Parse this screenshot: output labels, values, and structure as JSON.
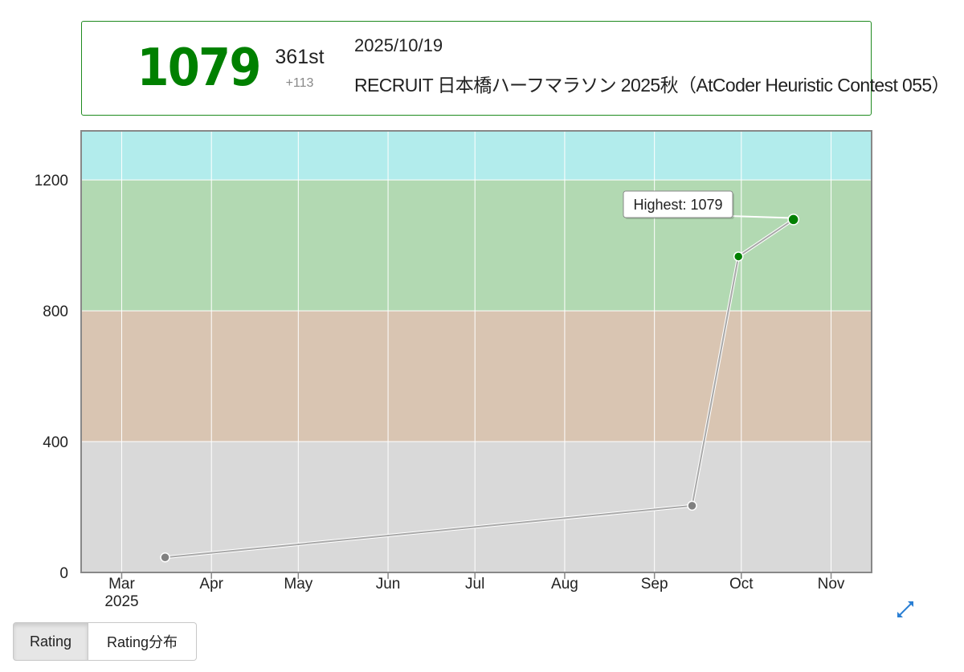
{
  "status": {
    "rating": "1079",
    "rank": "361st",
    "diff": "+113",
    "date": "2025/10/19",
    "contest": "RECRUIT 日本橋ハーフマラソン 2025秋（AtCoder Heuristic Contest 055）"
  },
  "tabs": [
    {
      "label": "Rating",
      "active": true
    },
    {
      "label": "Rating分布",
      "active": false
    }
  ],
  "chart_data": {
    "type": "line",
    "title": "",
    "xlabel": "",
    "ylabel": "",
    "ylim": [
      0,
      1350
    ],
    "y_ticks": [
      0,
      400,
      800,
      1200
    ],
    "x_range": [
      "2025-02-15",
      "2025-11-15"
    ],
    "x_ticks": [
      {
        "date": "2025-03-01",
        "label": "Mar",
        "sublabel": "2025"
      },
      {
        "date": "2025-04-01",
        "label": "Apr",
        "sublabel": ""
      },
      {
        "date": "2025-05-01",
        "label": "May",
        "sublabel": ""
      },
      {
        "date": "2025-06-01",
        "label": "Jun",
        "sublabel": ""
      },
      {
        "date": "2025-07-01",
        "label": "Jul",
        "sublabel": ""
      },
      {
        "date": "2025-08-01",
        "label": "Aug",
        "sublabel": ""
      },
      {
        "date": "2025-09-01",
        "label": "Sep",
        "sublabel": ""
      },
      {
        "date": "2025-10-01",
        "label": "Oct",
        "sublabel": ""
      },
      {
        "date": "2025-11-01",
        "label": "Nov",
        "sublabel": ""
      }
    ],
    "bands": [
      {
        "from": 0,
        "to": 400,
        "color": "#d9d9d9"
      },
      {
        "from": 400,
        "to": 800,
        "color": "#d9c5b2"
      },
      {
        "from": 800,
        "to": 1200,
        "color": "#b2d9b2"
      },
      {
        "from": 1200,
        "to": 1350,
        "color": "#b2ecec"
      }
    ],
    "series": [
      {
        "points": [
          {
            "date": "2025-03-16",
            "y": 46,
            "color": "#808080"
          },
          {
            "date": "2025-09-14",
            "y": 204,
            "color": "#808080"
          },
          {
            "date": "2025-09-30",
            "y": 966,
            "color": "#008000"
          },
          {
            "date": "2025-10-19",
            "y": 1079,
            "color": "#008000"
          }
        ]
      }
    ],
    "annotation": {
      "text": "Highest: 1079",
      "point_index": 3
    }
  }
}
